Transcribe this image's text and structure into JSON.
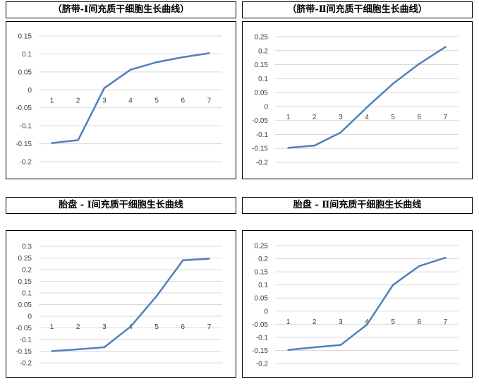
{
  "chart_data": [
    {
      "type": "line",
      "title": "（脐带-Ⅰ间充质干细胞生长曲线）",
      "categories": [
        "1",
        "2",
        "3",
        "4",
        "5",
        "6",
        "7"
      ],
      "values": [
        -0.148,
        -0.14,
        0.005,
        0.056,
        0.077,
        0.091,
        0.102
      ],
      "yticks": [
        "0.15",
        "0.1",
        "0.05",
        "0",
        "-0.05",
        "-0.1",
        "-0.15",
        "-0.2"
      ],
      "ylim": [
        -0.2,
        0.15
      ],
      "grid": true,
      "color": "#4F81BD"
    },
    {
      "type": "line",
      "title": "（脐带-Ⅱ间充质干细胞生长曲线）",
      "categories": [
        "1",
        "2",
        "3",
        "4",
        "5",
        "6",
        "7"
      ],
      "values": [
        -0.148,
        -0.14,
        -0.093,
        -0.003,
        0.082,
        0.153,
        0.213
      ],
      "yticks": [
        "0.25",
        "0.2",
        "0.15",
        "0.1",
        "0.05",
        "0",
        "-0.05",
        "-0.1",
        "-0.15",
        "-0.2"
      ],
      "ylim": [
        -0.2,
        0.25
      ],
      "grid": true,
      "color": "#4F81BD"
    },
    {
      "type": "line",
      "title": "胎盘 - Ⅰ间充质干细胞生长曲线",
      "categories": [
        "1",
        "2",
        "3",
        "4",
        "5",
        "6",
        "7"
      ],
      "values": [
        -0.15,
        -0.142,
        -0.133,
        -0.045,
        0.087,
        0.24,
        0.247
      ],
      "yticks": [
        "0.3",
        "0.25",
        "0.2",
        "0.15",
        "0.1",
        "0.05",
        "0",
        "-0.05",
        "-0.1",
        "-0.15",
        "-0.2"
      ],
      "ylim": [
        -0.2,
        0.3
      ],
      "grid": true,
      "color": "#4F81BD"
    },
    {
      "type": "line",
      "title": "胎盘 - Ⅱ间充质干细胞生长曲线",
      "categories": [
        "1",
        "2",
        "3",
        "4",
        "5",
        "6",
        "7"
      ],
      "values": [
        -0.148,
        -0.138,
        -0.129,
        -0.052,
        0.1,
        0.172,
        0.204
      ],
      "yticks": [
        "0.25",
        "0.2",
        "0.15",
        "0.1",
        "0.05",
        "0",
        "-0.05",
        "-0.1",
        "-0.15",
        "-0.2"
      ],
      "ylim": [
        -0.2,
        0.25
      ],
      "grid": true,
      "color": "#4F81BD"
    }
  ]
}
